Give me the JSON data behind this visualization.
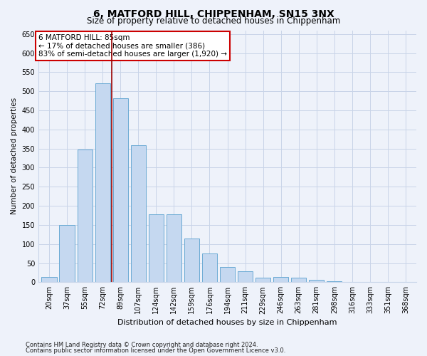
{
  "title": "6, MATFORD HILL, CHIPPENHAM, SN15 3NX",
  "subtitle": "Size of property relative to detached houses in Chippenham",
  "xlabel": "Distribution of detached houses by size in Chippenham",
  "ylabel": "Number of detached properties",
  "categories": [
    "20sqm",
    "37sqm",
    "55sqm",
    "72sqm",
    "89sqm",
    "107sqm",
    "124sqm",
    "142sqm",
    "159sqm",
    "176sqm",
    "194sqm",
    "211sqm",
    "229sqm",
    "246sqm",
    "263sqm",
    "281sqm",
    "298sqm",
    "316sqm",
    "333sqm",
    "351sqm",
    "368sqm"
  ],
  "values": [
    13,
    150,
    347,
    521,
    482,
    358,
    178,
    178,
    115,
    76,
    40,
    29,
    11,
    13,
    11,
    7,
    3,
    1,
    1,
    1,
    1
  ],
  "bar_color": "#c5d8f0",
  "bar_edge_color": "#6aaad4",
  "grid_color": "#c8d4e8",
  "background_color": "#eef2fa",
  "vline_x_idx": 4,
  "vline_color": "#990000",
  "annotation_line1": "6 MATFORD HILL: 85sqm",
  "annotation_line2": "← 17% of detached houses are smaller (386)",
  "annotation_line3": "83% of semi-detached houses are larger (1,920) →",
  "annotation_box_facecolor": "#ffffff",
  "annotation_box_edgecolor": "#cc0000",
  "footer_line1": "Contains HM Land Registry data © Crown copyright and database right 2024.",
  "footer_line2": "Contains public sector information licensed under the Open Government Licence v3.0.",
  "ylim": [
    0,
    660
  ],
  "yticks": [
    0,
    50,
    100,
    150,
    200,
    250,
    300,
    350,
    400,
    450,
    500,
    550,
    600,
    650
  ]
}
